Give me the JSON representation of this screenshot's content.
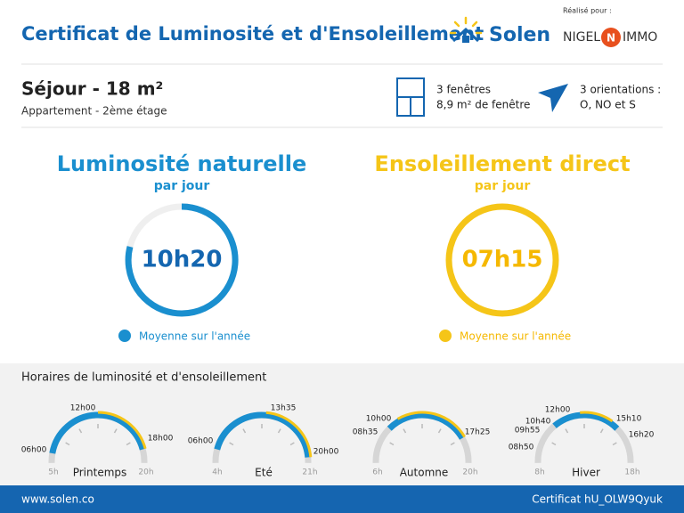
{
  "header": {
    "title": "Certificat de Luminosité et d'Ensoleillement",
    "brand": "Solen",
    "made_for": "Réalisé pour :",
    "client_left": "NIGEL",
    "client_right": "IMMO"
  },
  "room": {
    "title": "Séjour - 18 m²",
    "subtitle": "Appartement - 2ème étage",
    "windows": [
      "3 fenêtres",
      "8,9 m² de fenêtre"
    ],
    "orientations": [
      "3 orientations :",
      "O, NO et S"
    ]
  },
  "luminosity": {
    "title": "Luminosité naturelle",
    "per": "par jour",
    "value": "10h20",
    "legend": "Moyenne sur l'année"
  },
  "sunshine": {
    "title": "Ensoleillement direct",
    "per": "par jour",
    "value": "07h15",
    "legend": "Moyenne sur l'année"
  },
  "schedule": {
    "title": "Horaires de luminosité et d'ensoleillement",
    "seasons": [
      {
        "name": "Printemps",
        "start": "5h",
        "end": "20h",
        "labels": [
          "06h00",
          "12h00",
          "18h00"
        ]
      },
      {
        "name": "Eté",
        "start": "4h",
        "end": "21h",
        "labels": [
          "06h00",
          "13h35",
          "20h00"
        ]
      },
      {
        "name": "Automne",
        "start": "6h",
        "end": "20h",
        "labels": [
          "10h00",
          "08h35",
          "17h25"
        ]
      },
      {
        "name": "Hiver",
        "start": "8h",
        "end": "18h",
        "labels": [
          "12h00",
          "10h40",
          "15h10",
          "09h55",
          "16h20",
          "08h50"
        ]
      }
    ]
  },
  "footer": {
    "site": "www.solen.co",
    "certificate": "Certificat hU_OLW9Qyuk"
  }
}
